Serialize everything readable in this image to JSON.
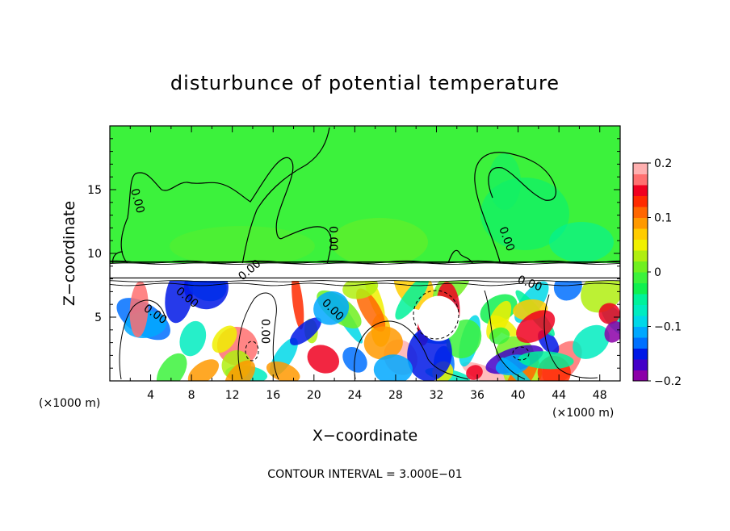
{
  "chart_data": {
    "type": "heatmap",
    "title": "disturbunce of potential temperature",
    "xlabel": "X−coordinate",
    "ylabel": "Z−coordinate",
    "x_unit": "(×1000 m)",
    "y_unit": "(×1000 m)",
    "xlim": [
      0,
      50
    ],
    "ylim": [
      0,
      20
    ],
    "x_ticks": [
      4,
      8,
      12,
      16,
      20,
      24,
      28,
      32,
      36,
      40,
      44,
      48
    ],
    "y_ticks": [
      5,
      10,
      15
    ],
    "x_tick_labels": [
      "4",
      "8",
      "12",
      "16",
      "20",
      "24",
      "28",
      "32",
      "36",
      "40",
      "44",
      "48"
    ],
    "y_tick_labels": [
      "5",
      "10",
      "15"
    ],
    "colorbar": {
      "min": -0.2,
      "max": 0.2,
      "ticks": [
        0.2,
        0.1,
        0,
        -0.1,
        -0.2
      ],
      "tick_labels": [
        "0.2",
        "0.1",
        "0",
        "−0.1",
        "−0.2"
      ],
      "colors": [
        "#8c00a8",
        "#4400c8",
        "#0018e6",
        "#0070ff",
        "#00a8ff",
        "#00d8e8",
        "#00ecc0",
        "#00f29a",
        "#10f050",
        "#3cf23c",
        "#70f020",
        "#b0ee10",
        "#f0f000",
        "#ffcc00",
        "#ff9900",
        "#ff6600",
        "#ff2a00",
        "#f00020",
        "#ff7070",
        "#ffb0b0"
      ]
    },
    "contour_interval": "CONTOUR INTERVAL = 3.000E−01",
    "contour_labels": [
      "0.00",
      "0.00",
      "0.00",
      "0.00",
      "0.00",
      "0.00",
      "0.00",
      "0.00",
      "0.00"
    ],
    "features": {
      "upper_layer_value": 0,
      "lower_layer_z_top": 8,
      "band_z": [
        8.2,
        9.2
      ]
    }
  }
}
